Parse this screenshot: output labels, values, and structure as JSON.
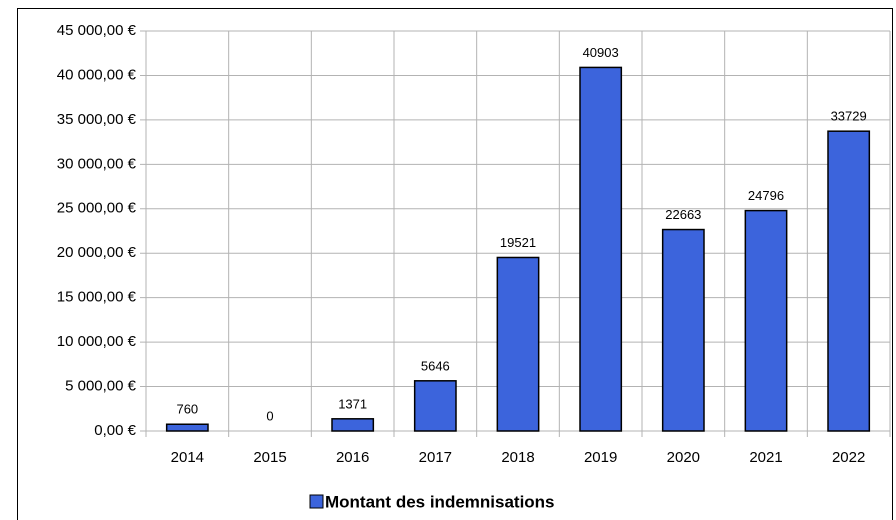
{
  "chart_data": {
    "type": "bar",
    "categories": [
      "2014",
      "2015",
      "2016",
      "2017",
      "2018",
      "2019",
      "2020",
      "2021",
      "2022"
    ],
    "series": [
      {
        "name": "Montant des indemnisations",
        "color": "#3c64dc",
        "values": [
          760,
          0,
          1371,
          5646,
          19521,
          40903,
          22663,
          24796,
          33729
        ]
      }
    ],
    "ylim": [
      0,
      45000
    ],
    "yticks": [
      {
        "value": 0,
        "label": "0,00 €"
      },
      {
        "value": 5000,
        "label": "5 000,00 €"
      },
      {
        "value": 10000,
        "label": "10 000,00 €"
      },
      {
        "value": 15000,
        "label": "15 000,00 €"
      },
      {
        "value": 20000,
        "label": "20 000,00 €"
      },
      {
        "value": 25000,
        "label": "25 000,00 €"
      },
      {
        "value": 30000,
        "label": "30 000,00 €"
      },
      {
        "value": 35000,
        "label": "35 000,00 €"
      },
      {
        "value": 40000,
        "label": "40 000,00 €"
      },
      {
        "value": 45000,
        "label": "45 000,00 €"
      }
    ],
    "grid": true,
    "legend": "bottom"
  }
}
